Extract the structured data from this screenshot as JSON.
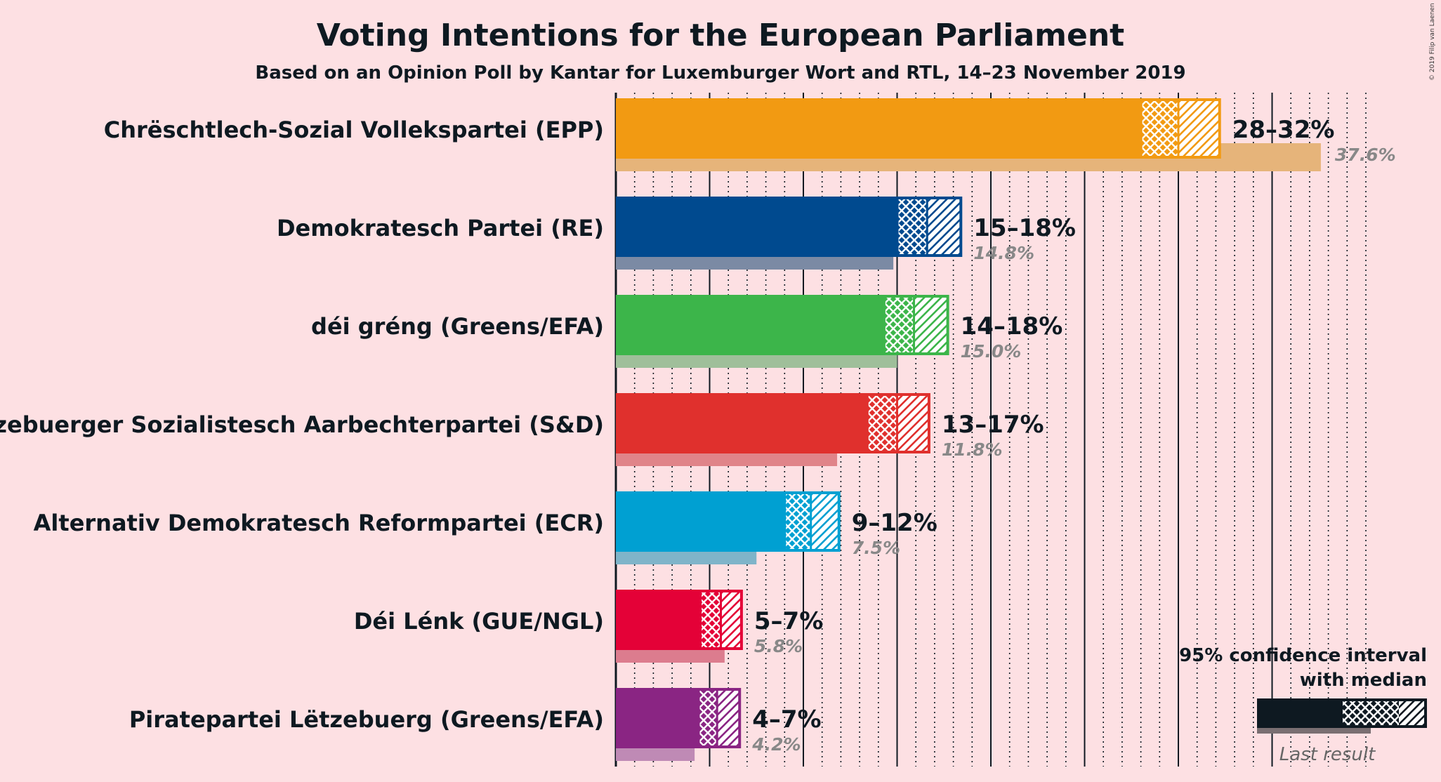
{
  "chart_data": {
    "type": "bar",
    "orientation": "horizontal",
    "title": "Voting Intentions for the European Parliament",
    "subtitle": "Based on an Opinion Poll by Kantar for Luxemburger Wort and RTL, 14–23 November 2019",
    "copyright": "© 2019 Filip van Laenen",
    "xlim": [
      0,
      40
    ],
    "gridlines_major": [
      0,
      5,
      10,
      15,
      20,
      25,
      30,
      35
    ],
    "gridlines_minor_step": 1,
    "series_legend": {
      "ci_label_line1": "95% confidence interval",
      "ci_label_line2": "with median",
      "last_result_label": "Last result"
    },
    "parties": [
      {
        "name": "Chrëschtlech-Sozial Vollekspartei (EPP)",
        "range_label": "28–32%",
        "last_label": "37.6%",
        "low": 28.0,
        "median": 30.0,
        "high": 32.2,
        "last": 37.6,
        "color": "#f29a12",
        "last_color": "#e6b47a"
      },
      {
        "name": "Demokratesch Partei (RE)",
        "range_label": "15–18%",
        "last_label": "14.8%",
        "low": 15.0,
        "median": 16.6,
        "high": 18.4,
        "last": 14.8,
        "color": "#004a8f",
        "last_color": "#7b8aa4"
      },
      {
        "name": "déi gréng (Greens/EFA)",
        "range_label": "14–18%",
        "last_label": "15.0%",
        "low": 14.3,
        "median": 15.9,
        "high": 17.7,
        "last": 15.0,
        "color": "#3cb54a",
        "last_color": "#9fbf9a"
      },
      {
        "name": "Lëtzebuerger Sozialistesch Aarbechterpartei (S&D)",
        "range_label": "13–17%",
        "last_label": "11.8%",
        "low": 13.4,
        "median": 15.0,
        "high": 16.7,
        "last": 11.8,
        "color": "#e0302d",
        "last_color": "#e08489"
      },
      {
        "name": "Alternativ Demokratesch Reformpartei (ECR)",
        "range_label": "9–12%",
        "last_label": "7.5%",
        "low": 9.0,
        "median": 10.4,
        "high": 11.9,
        "last": 7.5,
        "color": "#00a0d2",
        "last_color": "#7fb4c9"
      },
      {
        "name": "Déi Lénk (GUE/NGL)",
        "range_label": "5–7%",
        "last_label": "5.8%",
        "low": 4.5,
        "median": 5.6,
        "high": 6.7,
        "last": 5.8,
        "color": "#e40137",
        "last_color": "#dc7c8e"
      },
      {
        "name": "Piratepartei Lëtzebuerg (Greens/EFA)",
        "range_label": "4–7%",
        "last_label": "4.2%",
        "low": 4.4,
        "median": 5.4,
        "high": 6.6,
        "last": 4.2,
        "color": "#8a2583",
        "last_color": "#bf8ab5"
      }
    ]
  }
}
